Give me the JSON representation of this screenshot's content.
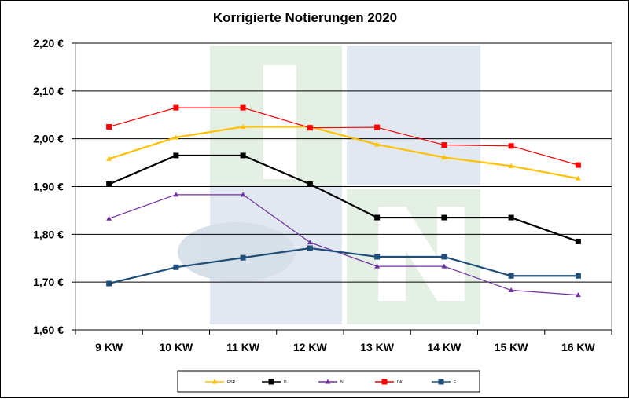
{
  "chart_data": {
    "type": "line",
    "title": "Korrigierte Notierungen 2020",
    "xlabel": "",
    "ylabel": "",
    "categories": [
      "9 KW",
      "10 KW",
      "11 KW",
      "12 KW",
      "13 KW",
      "14 KW",
      "15 KW",
      "16 KW"
    ],
    "ylim": [
      1.6,
      2.2
    ],
    "yticks": [
      1.6,
      1.7,
      1.8,
      1.9,
      2.0,
      2.1,
      2.2
    ],
    "ytick_labels": [
      "1,60 €",
      "1,70 €",
      "1,80 €",
      "1,90 €",
      "2,00 €",
      "2,10 €",
      "2,20 €"
    ],
    "grid": "horizontal",
    "legend_position": "bottom",
    "series": [
      {
        "name": "ESP",
        "color": "#FFC000",
        "marker": "triangle",
        "values": [
          1.958,
          2.003,
          2.025,
          2.025,
          1.988,
          1.961,
          1.943,
          1.917
        ]
      },
      {
        "name": "D",
        "color": "#000000",
        "marker": "square",
        "values": [
          1.905,
          1.965,
          1.965,
          1.905,
          1.835,
          1.835,
          1.835,
          1.785
        ]
      },
      {
        "name": "NL",
        "color": "#7030A0",
        "marker": "triangle",
        "values": [
          1.833,
          1.883,
          1.883,
          1.783,
          1.733,
          1.733,
          1.683,
          1.673
        ]
      },
      {
        "name": "DK",
        "color": "#FF0000",
        "marker": "square",
        "values": [
          2.025,
          2.065,
          2.065,
          2.023,
          2.024,
          1.987,
          1.985,
          1.945
        ]
      },
      {
        "name": "F",
        "color": "#1F4E79",
        "marker": "square",
        "values": [
          1.697,
          1.731,
          1.751,
          1.771,
          1.753,
          1.753,
          1.713,
          1.713
        ]
      }
    ]
  }
}
